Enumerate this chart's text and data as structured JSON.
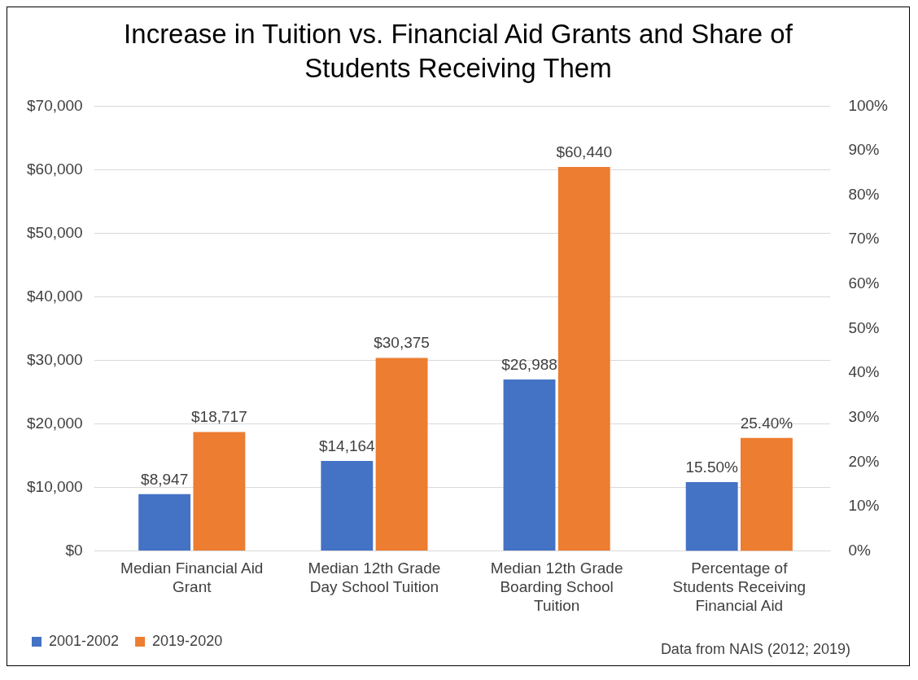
{
  "chart_data": {
    "type": "bar",
    "title": "Increase in Tuition vs. Financial Aid Grants and Share of Students Receiving Them",
    "categories": [
      "Median Financial Aid Grant",
      "Median 12th Grade Day School Tuition",
      "Median 12th Grade Boarding School Tuition",
      "Percentage of Students Receiving Financial Aid"
    ],
    "series": [
      {
        "name": "2001-2002",
        "color": "#4472c4",
        "values": [
          8947,
          14164,
          26988,
          null
        ],
        "value_labels": [
          "$8,947",
          "$14,164",
          "$26,988",
          null
        ]
      },
      {
        "name": "2019-2020",
        "color": "#ed7d31",
        "values": [
          18717,
          30375,
          60440,
          null
        ],
        "value_labels": [
          "$18,717",
          "$30,375",
          "$60,440",
          null
        ]
      },
      {
        "color": "#4472c4",
        "axis": "y2",
        "values": [
          null,
          null,
          null,
          15.5
        ],
        "value_labels": [
          null,
          null,
          null,
          "15.50%"
        ]
      },
      {
        "color": "#ed7d31",
        "axis": "y2",
        "values": [
          null,
          null,
          null,
          25.4
        ],
        "value_labels": [
          null,
          null,
          null,
          "25.40%"
        ]
      }
    ],
    "ylim": [
      0,
      70000
    ],
    "yticks": [
      {
        "value": 0,
        "label": "$0"
      },
      {
        "value": 10000,
        "label": "$10,000"
      },
      {
        "value": 20000,
        "label": "$20,000"
      },
      {
        "value": 30000,
        "label": "$30,000"
      },
      {
        "value": 40000,
        "label": "$40,000"
      },
      {
        "value": 50000,
        "label": "$50,000"
      },
      {
        "value": 60000,
        "label": "$60,000"
      },
      {
        "value": 70000,
        "label": "$70,000"
      }
    ],
    "y2lim": [
      0,
      100
    ],
    "y2ticks": [
      {
        "value": 0,
        "label": "0%"
      },
      {
        "value": 10,
        "label": "10%"
      },
      {
        "value": 20,
        "label": "20%"
      },
      {
        "value": 30,
        "label": "30%"
      },
      {
        "value": 40,
        "label": "40%"
      },
      {
        "value": 50,
        "label": "50%"
      },
      {
        "value": 60,
        "label": "60%"
      },
      {
        "value": 70,
        "label": "70%"
      },
      {
        "value": 80,
        "label": "80%"
      },
      {
        "value": 90,
        "label": "90%"
      },
      {
        "value": 100,
        "label": "100%"
      }
    ],
    "grid": "y",
    "legend": "bottom",
    "annotations": [
      "Data from NAIS (2012; 2019)"
    ]
  }
}
